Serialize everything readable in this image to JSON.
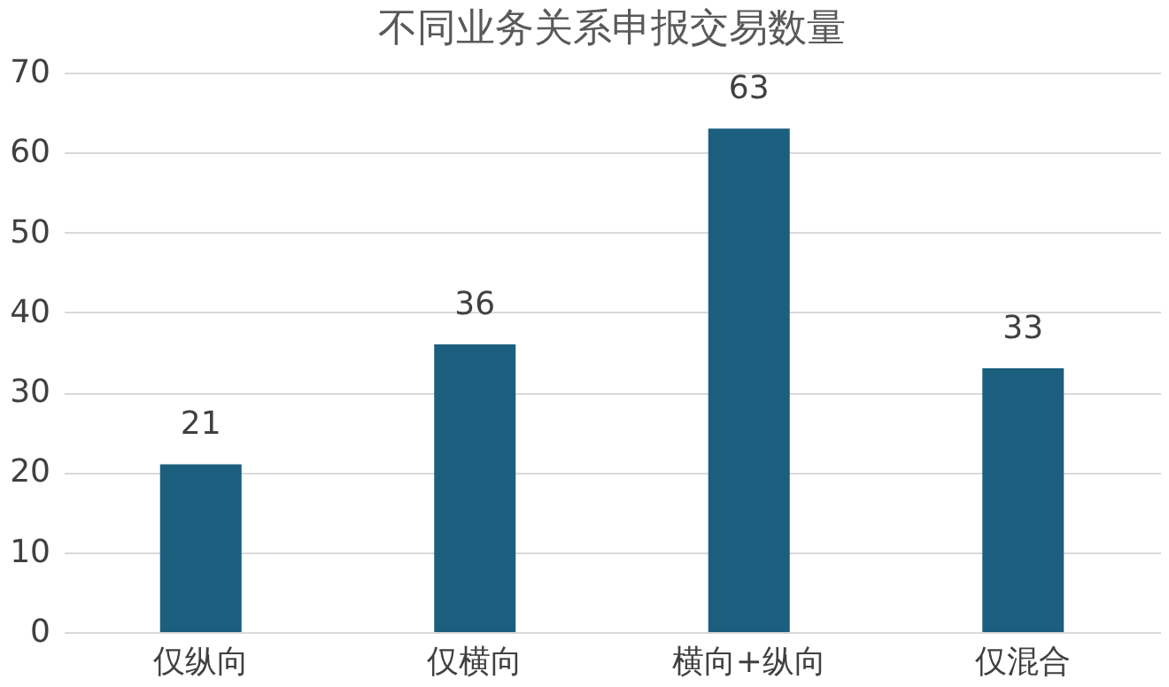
{
  "chart_data": {
    "type": "bar",
    "title": "不同业务关系申报交易数量",
    "categories": [
      "仅纵向",
      "仅横向",
      "横向+纵向",
      "仅混合"
    ],
    "values": [
      21,
      36,
      63,
      33
    ],
    "color": "#1b5e7e",
    "ylim": [
      0,
      70
    ],
    "yticks": [
      0,
      10,
      20,
      30,
      40,
      50,
      60,
      70
    ],
    "grid": "y",
    "data_labels": true
  }
}
